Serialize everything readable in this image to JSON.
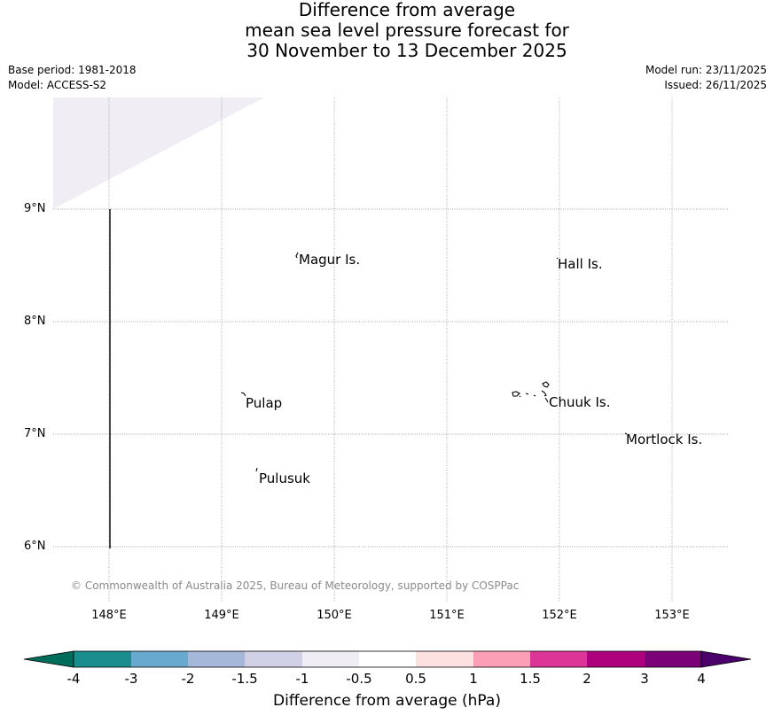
{
  "title": {
    "line1": "Difference from average",
    "line2": "mean sea level pressure forecast for",
    "line3": "30 November to 13 December 2025"
  },
  "meta": {
    "base_period": "Base period: 1981-2018",
    "model": "Model: ACCESS-S2",
    "model_run": "Model run: 23/11/2025",
    "issued": "Issued: 26/11/2025"
  },
  "map": {
    "lat_labels": [
      "9°N",
      "8°N",
      "7°N",
      "6°N"
    ],
    "lon_labels": [
      "148°E",
      "149°E",
      "150°E",
      "151°E",
      "152°E",
      "153°E"
    ],
    "places": {
      "magur": "Magur Is.",
      "hall": "Hall Is.",
      "pulap": "Pulap",
      "chuuk": "Chuuk Is.",
      "mortlock": "Mortlock Is.",
      "pulusuk": "Pulusuk"
    },
    "credit": "© Commonwealth of Australia 2025, Bureau of Meteorology, supported by COSPPac",
    "shaded_region_class": "-1 to -0.5",
    "shaded_color": "#f1edf5"
  },
  "colorbar": {
    "label": "Difference from average (hPa)",
    "ticks": [
      "-4",
      "-3",
      "-2",
      "-1.5",
      "-1",
      "-0.5",
      "0.5",
      "1",
      "1.5",
      "2",
      "3",
      "4"
    ],
    "colors": [
      "#1a8e8f",
      "#67a9cf",
      "#a6b8da",
      "#d0d1e6",
      "#f1edf5",
      "#ffffff",
      "#fde0e0",
      "#fa9fb5",
      "#dd3497",
      "#ae017e",
      "#7a0177"
    ],
    "under_color": "#006d5b",
    "over_color": "#49006a"
  }
}
